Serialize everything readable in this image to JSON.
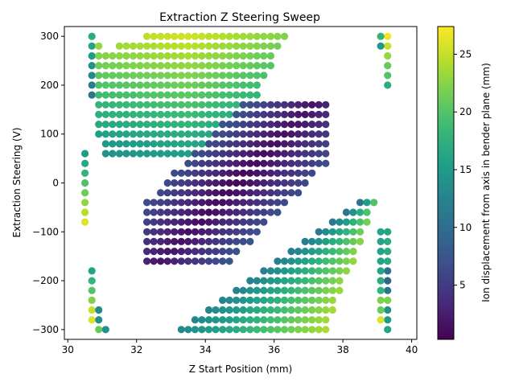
{
  "chart_data": {
    "type": "scatter",
    "title": "Extraction Z Steering Sweep",
    "xlabel": "Z Start Position (mm)",
    "ylabel": "Extraction Steering (V)",
    "colorbar_label": "Ion displacement from axis in bender plane (mm)",
    "colormap": "viridis",
    "xlim": [
      29.9,
      40.15
    ],
    "ylim": [
      -320,
      320
    ],
    "clim": [
      0.3,
      27.4
    ],
    "xticks": [
      30,
      32,
      34,
      36,
      38,
      40
    ],
    "yticks": [
      -300,
      -200,
      -100,
      0,
      100,
      200,
      300
    ],
    "cticks": [
      5,
      10,
      15,
      20,
      25
    ],
    "grid": false,
    "regions": [
      {
        "name": "upper-left band",
        "y_range": [
          60,
          300
        ],
        "x_range": [
          30.7,
          36.3
        ],
        "values_at_row": {
          "300": [
            [
              32.3,
              24.5
            ],
            [
              34.2,
              20.5
            ],
            [
              36.3,
              17
            ]
          ],
          "200": [
            [
              30.7,
              12
            ],
            [
              31.5,
              20
            ],
            [
              33.5,
              17
            ],
            [
              34.7,
              15
            ]
          ],
          "120": [
            [
              30.9,
              13
            ],
            [
              32.5,
              16
            ],
            [
              33.9,
              14
            ]
          ],
          "60": [
            [
              31.1,
              12
            ],
            [
              31.5,
              13
            ]
          ]
        }
      },
      {
        "name": "center diagonal band",
        "y_range": [
          -160,
          160
        ],
        "x_range": [
          32.3,
          37.5
        ],
        "values": "0.5 to 7 mm, minimum along the diagonal"
      },
      {
        "name": "lower-right band",
        "y_range": [
          -300,
          -40
        ],
        "x_range": [
          33.3,
          39.0
        ],
        "values_at_row": {
          "-300": [
            [
              33.3,
              14
            ],
            [
              35.5,
              20
            ],
            [
              37.5,
              25.5
            ]
          ],
          "-200": [
            [
              36.1,
              16
            ],
            [
              37.5,
              20
            ],
            [
              38.5,
              22
            ]
          ],
          "-100": [
            [
              38.0,
              14
            ],
            [
              39.0,
              14
            ]
          ],
          "-40": [
            [
              38.5,
              12
            ],
            [
              38.7,
              12
            ]
          ]
        }
      },
      {
        "name": "left edge column",
        "x": 30.5,
        "y_range": [
          -80,
          60
        ],
        "values": "15 mm at top rising to 26 mm at bottom"
      },
      {
        "name": "right edge column",
        "x": 39.3,
        "y_range": [
          -300,
          300
        ],
        "values": "27 mm at top, 17 mm at 200 V, 10 mm near -200 V, 16 mm at -300 V"
      }
    ]
  }
}
